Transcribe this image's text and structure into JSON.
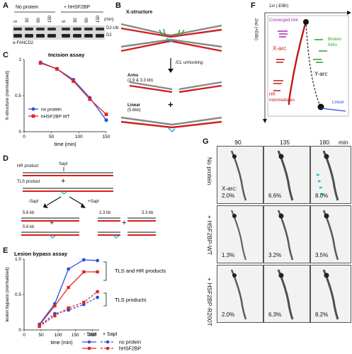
{
  "panels": {
    "a": "A",
    "b": "B",
    "c": "C",
    "d": "D",
    "e": "E",
    "f": "F",
    "g": "G"
  },
  "panel_a": {
    "groups": [
      "No protein",
      "+ hHSF2BP"
    ],
    "times": [
      "5",
      "30",
      "90",
      "150",
      "5",
      "30",
      "90",
      "150"
    ],
    "unit": "(min)",
    "band_labels": [
      "D2-Ub",
      "D2"
    ],
    "antibody": "α-FANCD2"
  },
  "panel_b": {
    "title": "X-structure",
    "step": "ICL unhooking",
    "arms": "Arms",
    "arms_size": "(2.9 & 3.3 kb)",
    "plus": "+",
    "linear": "Linear",
    "linear_size": "(5.6kb)"
  },
  "panel_d": {
    "hr": "HR product",
    "tls": "TLS product",
    "sapi": "SapI",
    "plus": "+",
    "minus_sapi": "-SapI",
    "plus_sapi": "+SapI",
    "sizes": [
      "5.6 kb",
      "5.6 kb",
      "2.3 kb",
      "3.3 kb"
    ]
  },
  "panel_f": {
    "xaxis": "1st (-EtBr)",
    "yaxis": "2nd (+EtBr)",
    "converged": "Converged fork",
    "broken": "Broken forks",
    "xarc": "X-arc",
    "yarc": "Y-arc",
    "hr_int": "HR intermediates",
    "linear": "Linear"
  },
  "panel_g": {
    "columns": [
      "90",
      "135",
      "180"
    ],
    "unit": "min",
    "rows": [
      "No protein",
      "+ HSF2BP-WT",
      "+ HSF2BP-R200T"
    ],
    "xarc_label": "X-arc:",
    "percents": [
      [
        "2.0%",
        "6.6%",
        "8.0%"
      ],
      [
        "1.3%",
        "3.2%",
        "3.5%"
      ],
      [
        "2.0%",
        "6.3%",
        "8.2%"
      ]
    ]
  },
  "chart_data": [
    {
      "type": "line",
      "title": "Incision assay",
      "xlabel": "time (min)",
      "ylabel": "X-structure (normalized)",
      "xlim": [
        0,
        150
      ],
      "ylim": [
        0,
        1
      ],
      "xticks": [
        "0",
        "50",
        "100",
        "150"
      ],
      "yticks": [
        "0",
        "0.5",
        "1"
      ],
      "legend_position": "bottom-left",
      "series": [
        {
          "name": "no protein",
          "color": "#2d4de0",
          "marker": "circle",
          "x": [
            30,
            60,
            90,
            120,
            150
          ],
          "y": [
            0.96,
            0.87,
            0.72,
            0.47,
            0.16
          ]
        },
        {
          "name": "hHSF2BP WT",
          "color": "#e02424",
          "marker": "square",
          "x": [
            30,
            60,
            90,
            120,
            150
          ],
          "y": [
            0.95,
            0.87,
            0.7,
            0.45,
            0.24
          ]
        }
      ]
    },
    {
      "type": "line",
      "title": "Lesion bypass assay",
      "xlabel": "time (min)",
      "ylabel": "lesion bypass (normalized)",
      "xlim": [
        0,
        220
      ],
      "ylim": [
        0,
        1
      ],
      "xticks": [
        "0",
        "50",
        "100",
        "150",
        "200"
      ],
      "yticks": [
        "0",
        "0.5",
        "1.0"
      ],
      "legend_headers": [
        "- SapI",
        "+ SapI"
      ],
      "legend_labels": [
        "no protein",
        "hHSF2BP"
      ],
      "bracket_labels": [
        "TLS and HR products",
        "TLS products"
      ],
      "series": [
        {
          "name": "no protein",
          "color": "#2d4de0",
          "style": "solid",
          "x": [
            45,
            90,
            130,
            175,
            215
          ],
          "y": [
            0.08,
            0.37,
            0.86,
            0.99,
            0.98
          ]
        },
        {
          "name": "hHSF2BP",
          "color": "#e02424",
          "style": "solid",
          "x": [
            45,
            90,
            130,
            175,
            215
          ],
          "y": [
            0.07,
            0.34,
            0.6,
            0.82,
            0.82
          ]
        },
        {
          "name": "no protein",
          "color": "#2d4de0",
          "style": "dashed",
          "x": [
            45,
            90,
            130,
            175,
            215
          ],
          "y": [
            0.06,
            0.23,
            0.28,
            0.36,
            0.46
          ]
        },
        {
          "name": "hHSF2BP",
          "color": "#e02424",
          "style": "dashed",
          "x": [
            45,
            90,
            130,
            175,
            215
          ],
          "y": [
            0.05,
            0.2,
            0.31,
            0.39,
            0.54
          ]
        }
      ]
    }
  ]
}
